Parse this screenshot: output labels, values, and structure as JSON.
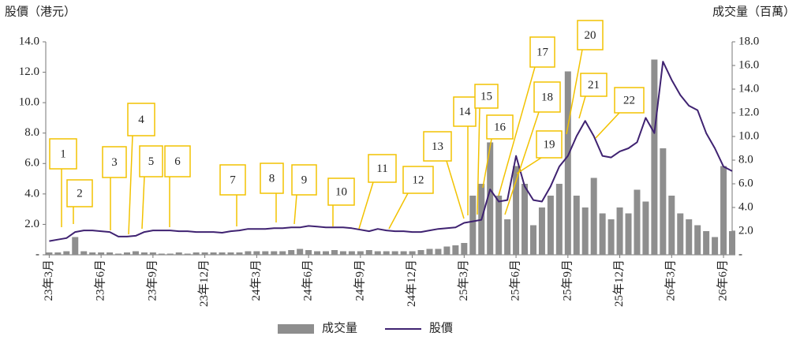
{
  "chart_data": {
    "type": "combo",
    "y_title": "股價（港元）",
    "y2_title": "成交量（百萬）",
    "x": [
      0,
      0.5,
      1,
      1.5,
      2,
      2.5,
      3,
      3.5,
      4,
      4.5,
      5,
      5.5,
      6,
      6.5,
      7,
      7.5,
      8,
      8.5,
      9,
      9.5,
      10,
      10.5,
      11,
      11.5,
      12,
      12.5,
      13,
      13.5,
      14,
      14.5,
      15,
      15.5,
      16,
      16.5,
      17,
      17.5,
      18,
      18.5,
      19,
      19.5,
      20,
      20.5,
      21,
      21.5,
      22,
      22.5,
      23,
      23.5,
      24,
      24.5,
      25,
      25.5,
      26,
      26.5,
      27,
      27.5,
      28,
      28.5,
      29,
      29.5,
      30,
      30.5,
      31,
      31.5,
      32,
      32.5,
      33,
      33.5,
      34,
      34.5,
      35,
      35.5,
      36,
      36.5,
      37,
      37.5,
      38,
      38.5,
      39,
      39.5
    ],
    "series": [
      {
        "name": "成交量",
        "type": "bar",
        "axis": "y2",
        "color": "#8e8e8e",
        "values": [
          0.2,
          0.2,
          0.3,
          1.5,
          0.3,
          0.2,
          0.2,
          0.2,
          0.1,
          0.2,
          0.3,
          0.2,
          0.2,
          0.1,
          0.1,
          0.2,
          0.1,
          0.2,
          0.2,
          0.2,
          0.2,
          0.2,
          0.2,
          0.3,
          0.3,
          0.3,
          0.3,
          0.3,
          0.4,
          0.5,
          0.4,
          0.3,
          0.3,
          0.4,
          0.3,
          0.3,
          0.3,
          0.4,
          0.3,
          0.3,
          0.3,
          0.3,
          0.3,
          0.4,
          0.5,
          0.5,
          0.7,
          0.8,
          1.0,
          5.0,
          6.0,
          9.5,
          5.0,
          3.0,
          7.5,
          6.0,
          2.5,
          4.0,
          5.0,
          6.0,
          15.5,
          5.0,
          4.0,
          6.5,
          3.5,
          3.0,
          4.0,
          3.5,
          5.5,
          4.5,
          16.5,
          9.0,
          5.0,
          3.5,
          3.0,
          2.5,
          2.0,
          1.5,
          7.5,
          2.0
        ]
      },
      {
        "name": "股價",
        "type": "line",
        "color": "#3f2271",
        "values": [
          0.9,
          1.0,
          1.1,
          1.5,
          1.6,
          1.6,
          1.55,
          1.5,
          1.2,
          1.2,
          1.25,
          1.5,
          1.6,
          1.6,
          1.6,
          1.55,
          1.55,
          1.5,
          1.5,
          1.5,
          1.45,
          1.55,
          1.6,
          1.7,
          1.7,
          1.7,
          1.75,
          1.75,
          1.8,
          1.8,
          1.9,
          1.85,
          1.8,
          1.8,
          1.8,
          1.75,
          1.65,
          1.55,
          1.7,
          1.6,
          1.55,
          1.55,
          1.5,
          1.5,
          1.6,
          1.7,
          1.75,
          1.8,
          2.1,
          2.2,
          2.3,
          4.3,
          3.5,
          3.6,
          6.5,
          4.5,
          3.6,
          3.5,
          4.5,
          5.8,
          6.5,
          7.8,
          8.8,
          7.8,
          6.5,
          6.4,
          6.8,
          7.0,
          7.4,
          9.0,
          8.0,
          12.7,
          11.5,
          10.5,
          9.8,
          9.5,
          8.0,
          7.0,
          5.8,
          5.5
        ]
      }
    ],
    "xlim": [
      -0.2,
      39.5
    ],
    "xticks": [
      {
        "value": 0,
        "label": "23年3月"
      },
      {
        "value": 3,
        "label": "23年6月"
      },
      {
        "value": 6,
        "label": "23年9月"
      },
      {
        "value": 9,
        "label": "23年12月"
      },
      {
        "value": 12,
        "label": "24年3月"
      },
      {
        "value": 15,
        "label": "24年6月"
      },
      {
        "value": 18,
        "label": "24年9月"
      },
      {
        "value": 21,
        "label": "24年12月"
      },
      {
        "value": 24,
        "label": "25年3月"
      },
      {
        "value": 27,
        "label": "25年6月"
      },
      {
        "value": 30,
        "label": "25年9月"
      },
      {
        "value": 33,
        "label": "25年12月"
      },
      {
        "value": 36,
        "label": "26年3月"
      },
      {
        "value": 39,
        "label": "26年6月"
      }
    ],
    "ylim": [
      0,
      14
    ],
    "yticks": [
      {
        "value": 0,
        "label": "-"
      },
      {
        "value": 2,
        "label": "2.0"
      },
      {
        "value": 4,
        "label": "4.0"
      },
      {
        "value": 6,
        "label": "6.0"
      },
      {
        "value": 8,
        "label": "8.0"
      },
      {
        "value": 10,
        "label": "10.0"
      },
      {
        "value": 12,
        "label": "12.0"
      },
      {
        "value": 14,
        "label": "14.0"
      }
    ],
    "y2lim": [
      0,
      18
    ],
    "y2ticks": [
      {
        "value": 0,
        "label": "-"
      },
      {
        "value": 2,
        "label": "2.0"
      },
      {
        "value": 4,
        "label": "4.0"
      },
      {
        "value": 6,
        "label": "6.0"
      },
      {
        "value": 8,
        "label": "8.0"
      },
      {
        "value": 10,
        "label": "10.0"
      },
      {
        "value": 12,
        "label": "12.0"
      },
      {
        "value": 14,
        "label": "14.0"
      },
      {
        "value": 16,
        "label": "16.0"
      },
      {
        "value": 18,
        "label": "18.0"
      }
    ],
    "annotations": [
      "1",
      "2",
      "3",
      "4",
      "5",
      "6",
      "7",
      "8",
      "9",
      "10",
      "11",
      "12",
      "13",
      "14",
      "15",
      "16",
      "17",
      "18",
      "19",
      "20",
      "21",
      "22"
    ],
    "legend": "bottom"
  }
}
